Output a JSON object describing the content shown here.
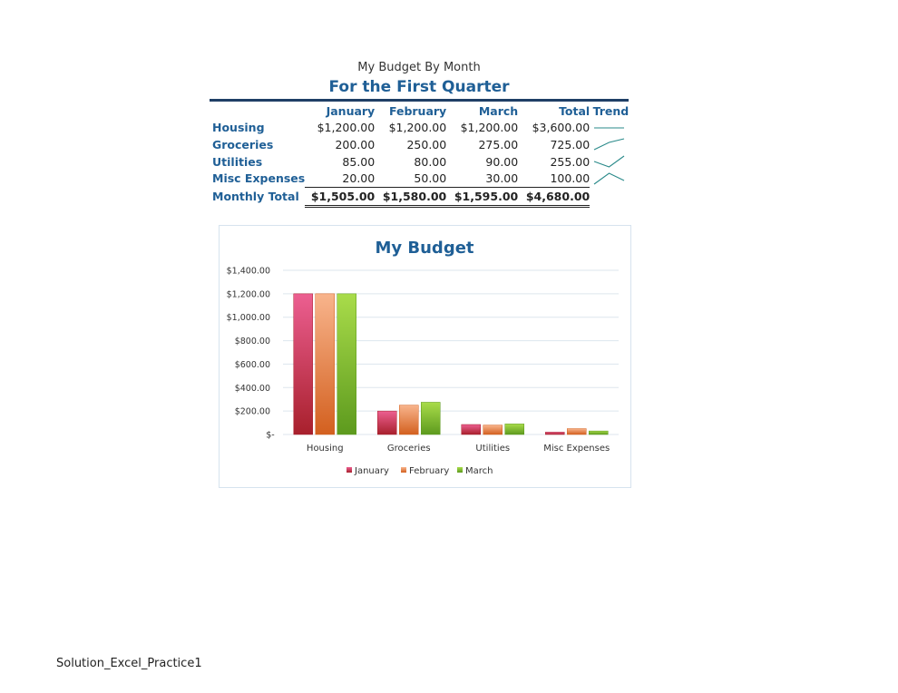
{
  "header": {
    "title_line1": "My Budget By Month",
    "title_line2": "For the First Quarter"
  },
  "table": {
    "columns": [
      "January",
      "February",
      "March",
      "Total",
      "Trend"
    ],
    "rows": [
      {
        "label": "Housing",
        "values": [
          "$1,200.00",
          "$1,200.00",
          "$1,200.00",
          "$3,600.00"
        ],
        "trend": [
          1200,
          1200,
          1200
        ]
      },
      {
        "label": "Groceries",
        "values": [
          "200.00",
          "250.00",
          "275.00",
          "725.00"
        ],
        "trend": [
          200,
          250,
          275
        ]
      },
      {
        "label": "Utilities",
        "values": [
          "85.00",
          "80.00",
          "90.00",
          "255.00"
        ],
        "trend": [
          85,
          80,
          90
        ]
      },
      {
        "label": "Misc Expenses",
        "values": [
          "20.00",
          "50.00",
          "30.00",
          "100.00"
        ],
        "trend": [
          20,
          50,
          30
        ]
      }
    ],
    "total": {
      "label": "Monthly Total",
      "values": [
        "$1,505.00",
        "$1,580.00",
        "$1,595.00",
        "$4,680.00"
      ]
    }
  },
  "chart_data": {
    "type": "bar",
    "title": "My Budget",
    "categories": [
      "Housing",
      "Groceries",
      "Utilities",
      "Misc Expenses"
    ],
    "series": [
      {
        "name": "January",
        "values": [
          1200,
          200,
          85,
          20
        ],
        "color_top": "#ec5f91",
        "color_bottom": "#a8202c"
      },
      {
        "name": "February",
        "values": [
          1200,
          250,
          80,
          50
        ],
        "color_top": "#f8b48c",
        "color_bottom": "#d3601f"
      },
      {
        "name": "March",
        "values": [
          1200,
          275,
          90,
          30
        ],
        "color_top": "#a9dc4a",
        "color_bottom": "#5d9a1e"
      }
    ],
    "ylim": [
      0,
      1400
    ],
    "yticks": [
      0,
      200,
      400,
      600,
      800,
      1000,
      1200,
      1400
    ],
    "ytick_labels": [
      "$-",
      "$200.00",
      "$400.00",
      "$600.00",
      "$800.00",
      "$1,000.00",
      "$1,200.00",
      "$1,400.00"
    ],
    "legend_position": "bottom",
    "grid": true
  },
  "footer": {
    "text": "Solution_Excel_Practice1"
  }
}
